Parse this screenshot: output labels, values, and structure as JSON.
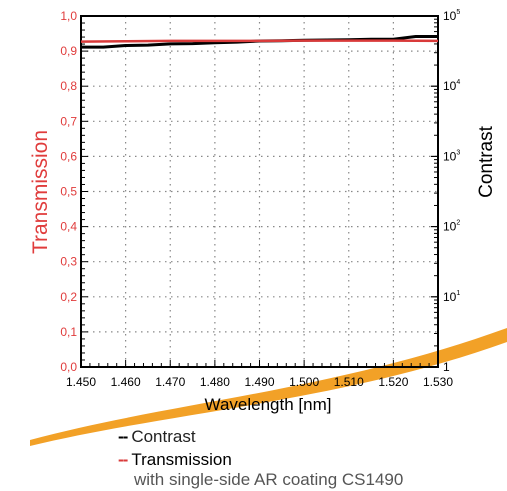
{
  "chart_data": {
    "type": "line",
    "xlabel": "Wavelength [nm]",
    "ylabel": "Transmission",
    "y2label": "Contrast",
    "xlim": [
      1.45,
      1.53
    ],
    "ylim": [
      0.0,
      1.0
    ],
    "y2lim": [
      1,
      100000
    ],
    "y2scale": "log",
    "grid": true,
    "x_ticks": [
      "1.450",
      "1.460",
      "1.470",
      "1.480",
      "1.490",
      "1.500",
      "1.510",
      "1.520",
      "1.530"
    ],
    "y_ticks": [
      "0,0",
      "0,1",
      "0,2",
      "0,3",
      "0,4",
      "0,5",
      "0,6",
      "0,7",
      "0,8",
      "0,9",
      "1,0"
    ],
    "y2_ticks": [
      {
        "base": "1",
        "exp": ""
      },
      {
        "base": "10",
        "exp": "1"
      },
      {
        "base": "10",
        "exp": "2"
      },
      {
        "base": "10",
        "exp": "3"
      },
      {
        "base": "10",
        "exp": "4"
      },
      {
        "base": "10",
        "exp": "5"
      }
    ],
    "series": [
      {
        "name": "Contrast",
        "axis": "y2",
        "color": "#000000",
        "x": [
          1.45,
          1.455,
          1.46,
          1.465,
          1.47,
          1.475,
          1.48,
          1.485,
          1.49,
          1.495,
          1.5,
          1.505,
          1.51,
          1.515,
          1.52,
          1.525,
          1.53
        ],
        "values": [
          36000,
          36000,
          38000,
          38500,
          40000,
          40500,
          41500,
          42500,
          44000,
          44500,
          45000,
          45500,
          46000,
          46500,
          46500,
          51000,
          51000
        ]
      },
      {
        "name": "Transmission",
        "axis": "y",
        "color": "#d93a3a",
        "x": [
          1.45,
          1.46,
          1.47,
          1.48,
          1.49,
          1.5,
          1.51,
          1.52,
          1.53
        ],
        "values": [
          0.927,
          0.928,
          0.929,
          0.929,
          0.929,
          0.93,
          0.93,
          0.93,
          0.929
        ]
      }
    ]
  },
  "legend": {
    "contrast_marker": "--",
    "contrast_label": "Contrast",
    "transmission_marker": "--",
    "transmission_label": "Transmission",
    "note": "with single-side AR coating CS1490"
  },
  "colors": {
    "accent_swoosh": "#f2a127",
    "transmission": "#d93a3a",
    "contrast": "#000000"
  }
}
